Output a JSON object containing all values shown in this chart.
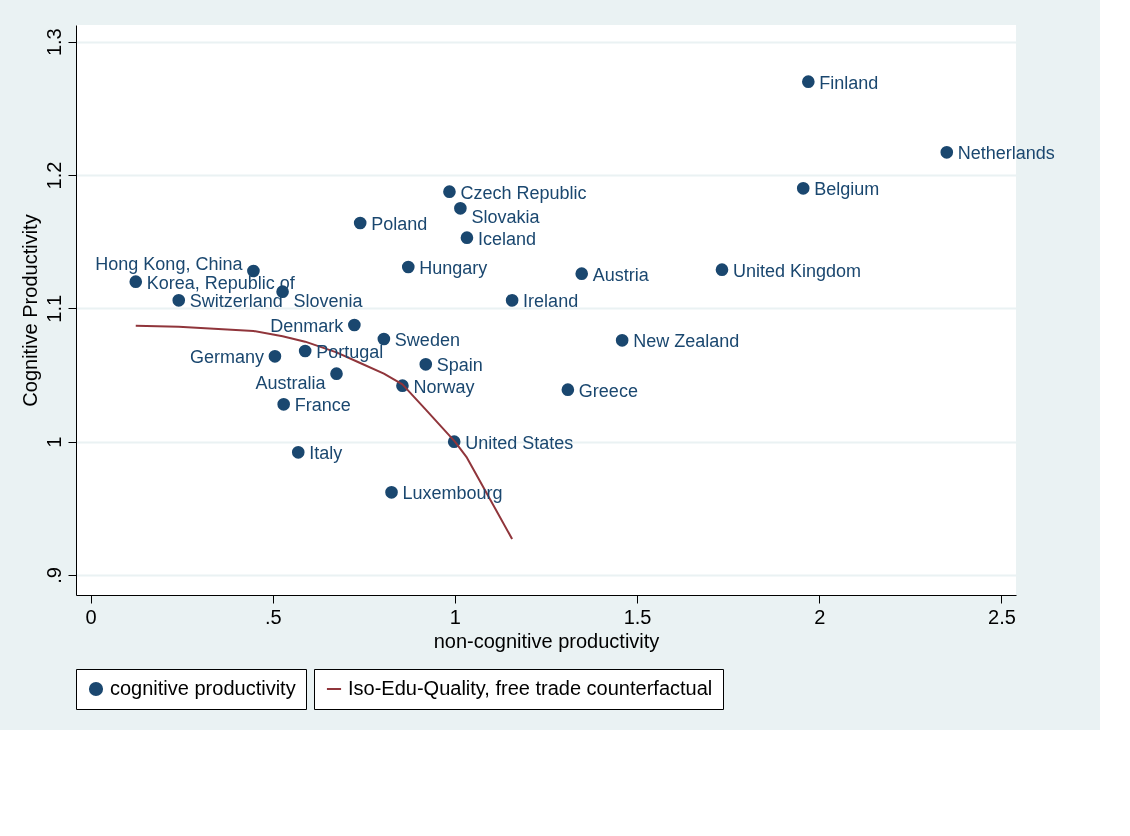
{
  "chart_data": {
    "type": "scatter",
    "xlabel": "non-cognitive productivity",
    "ylabel": "Cognitive Productivity",
    "xlim": [
      -0.04,
      2.54
    ],
    "ylim": [
      0.885,
      1.3125
    ],
    "xticks": [
      0,
      {
        "value": 0.5,
        "label": ".5"
      },
      1,
      1.5,
      2,
      2.5
    ],
    "yticks": [
      {
        "value": 0.9,
        "label": ".9"
      },
      1,
      1.1,
      1.2,
      1.3
    ],
    "grid": "y",
    "legend": "bottom",
    "series": [
      {
        "name": "cognitive productivity",
        "marker": "circle",
        "color": "#1a476f",
        "x": [
          1.97,
          2.35,
          1.956,
          0.985,
          1.015,
          0.74,
          1.033,
          0.447,
          0.872,
          1.348,
          1.733,
          0.124,
          0.527,
          0.242,
          1.157,
          0.724,
          0.805,
          1.459,
          0.589,
          0.506,
          0.92,
          0.675,
          0.856,
          1.31,
          0.53,
          0.998,
          0.57,
          0.826
        ],
        "values": [
          1.27,
          1.217,
          1.19,
          1.1875,
          1.175,
          1.164,
          1.153,
          1.128,
          1.131,
          1.126,
          1.129,
          1.12,
          1.1125,
          1.106,
          1.106,
          1.0875,
          1.077,
          1.076,
          1.068,
          1.064,
          1.058,
          1.051,
          1.042,
          1.039,
          1.028,
          1.0,
          0.992,
          0.962
        ]
      },
      {
        "name": "Iso-Edu-Quality, free trade counterfactual",
        "type": "line",
        "marker": "none",
        "color": "#90353b",
        "line_style": "solid",
        "x": [
          0.124,
          0.242,
          0.447,
          0.527,
          0.589,
          0.675,
          0.74,
          0.805,
          0.856,
          0.92,
          1.0,
          1.033,
          1.157
        ],
        "values": [
          1.087,
          1.0861,
          1.083,
          1.079,
          1.075,
          1.067,
          1.059,
          1.051,
          1.043,
          1.024,
          1.0,
          0.988,
          0.927
        ]
      }
    ],
    "annotations": [
      {
        "text": "Finland",
        "x": 1.97,
        "y": 1.27
      },
      {
        "text": "Netherlands",
        "x": 2.35,
        "y": 1.217
      },
      {
        "text": "Belgium",
        "x": 1.956,
        "y": 1.19
      },
      {
        "text": "Czech Republic",
        "x": 0.985,
        "y": 1.1875
      },
      {
        "text": "Slovakia",
        "x": 1.015,
        "y": 1.175
      },
      {
        "text": "Poland",
        "x": 0.74,
        "y": 1.164
      },
      {
        "text": "Iceland",
        "x": 1.033,
        "y": 1.153
      },
      {
        "text": "Hong Kong, China",
        "x": 0.447,
        "y": 1.128
      },
      {
        "text": "Hungary",
        "x": 0.872,
        "y": 1.131
      },
      {
        "text": "Austria",
        "x": 1.348,
        "y": 1.126
      },
      {
        "text": "United Kingdom",
        "x": 1.733,
        "y": 1.129
      },
      {
        "text": "Korea, Republic of",
        "x": 0.124,
        "y": 1.12
      },
      {
        "text": "Slovenia",
        "x": 0.527,
        "y": 1.1125
      },
      {
        "text": "Switzerland",
        "x": 0.242,
        "y": 1.106
      },
      {
        "text": "Ireland",
        "x": 1.157,
        "y": 1.106
      },
      {
        "text": "Denmark",
        "x": 0.724,
        "y": 1.0875
      },
      {
        "text": "Sweden",
        "x": 0.805,
        "y": 1.077
      },
      {
        "text": "New Zealand",
        "x": 1.459,
        "y": 1.076
      },
      {
        "text": "Portugal",
        "x": 0.589,
        "y": 1.068
      },
      {
        "text": "Germany",
        "x": 0.506,
        "y": 1.064
      },
      {
        "text": "Spain",
        "x": 0.92,
        "y": 1.058
      },
      {
        "text": "Australia",
        "x": 0.675,
        "y": 1.051
      },
      {
        "text": "Norway",
        "x": 0.856,
        "y": 1.042
      },
      {
        "text": "Greece",
        "x": 1.31,
        "y": 1.039
      },
      {
        "text": "France",
        "x": 0.53,
        "y": 1.028
      },
      {
        "text": "United States",
        "x": 0.998,
        "y": 1.0
      },
      {
        "text": "Italy",
        "x": 0.57,
        "y": 0.992
      },
      {
        "text": "Luxembourg",
        "x": 0.826,
        "y": 0.962
      }
    ]
  }
}
